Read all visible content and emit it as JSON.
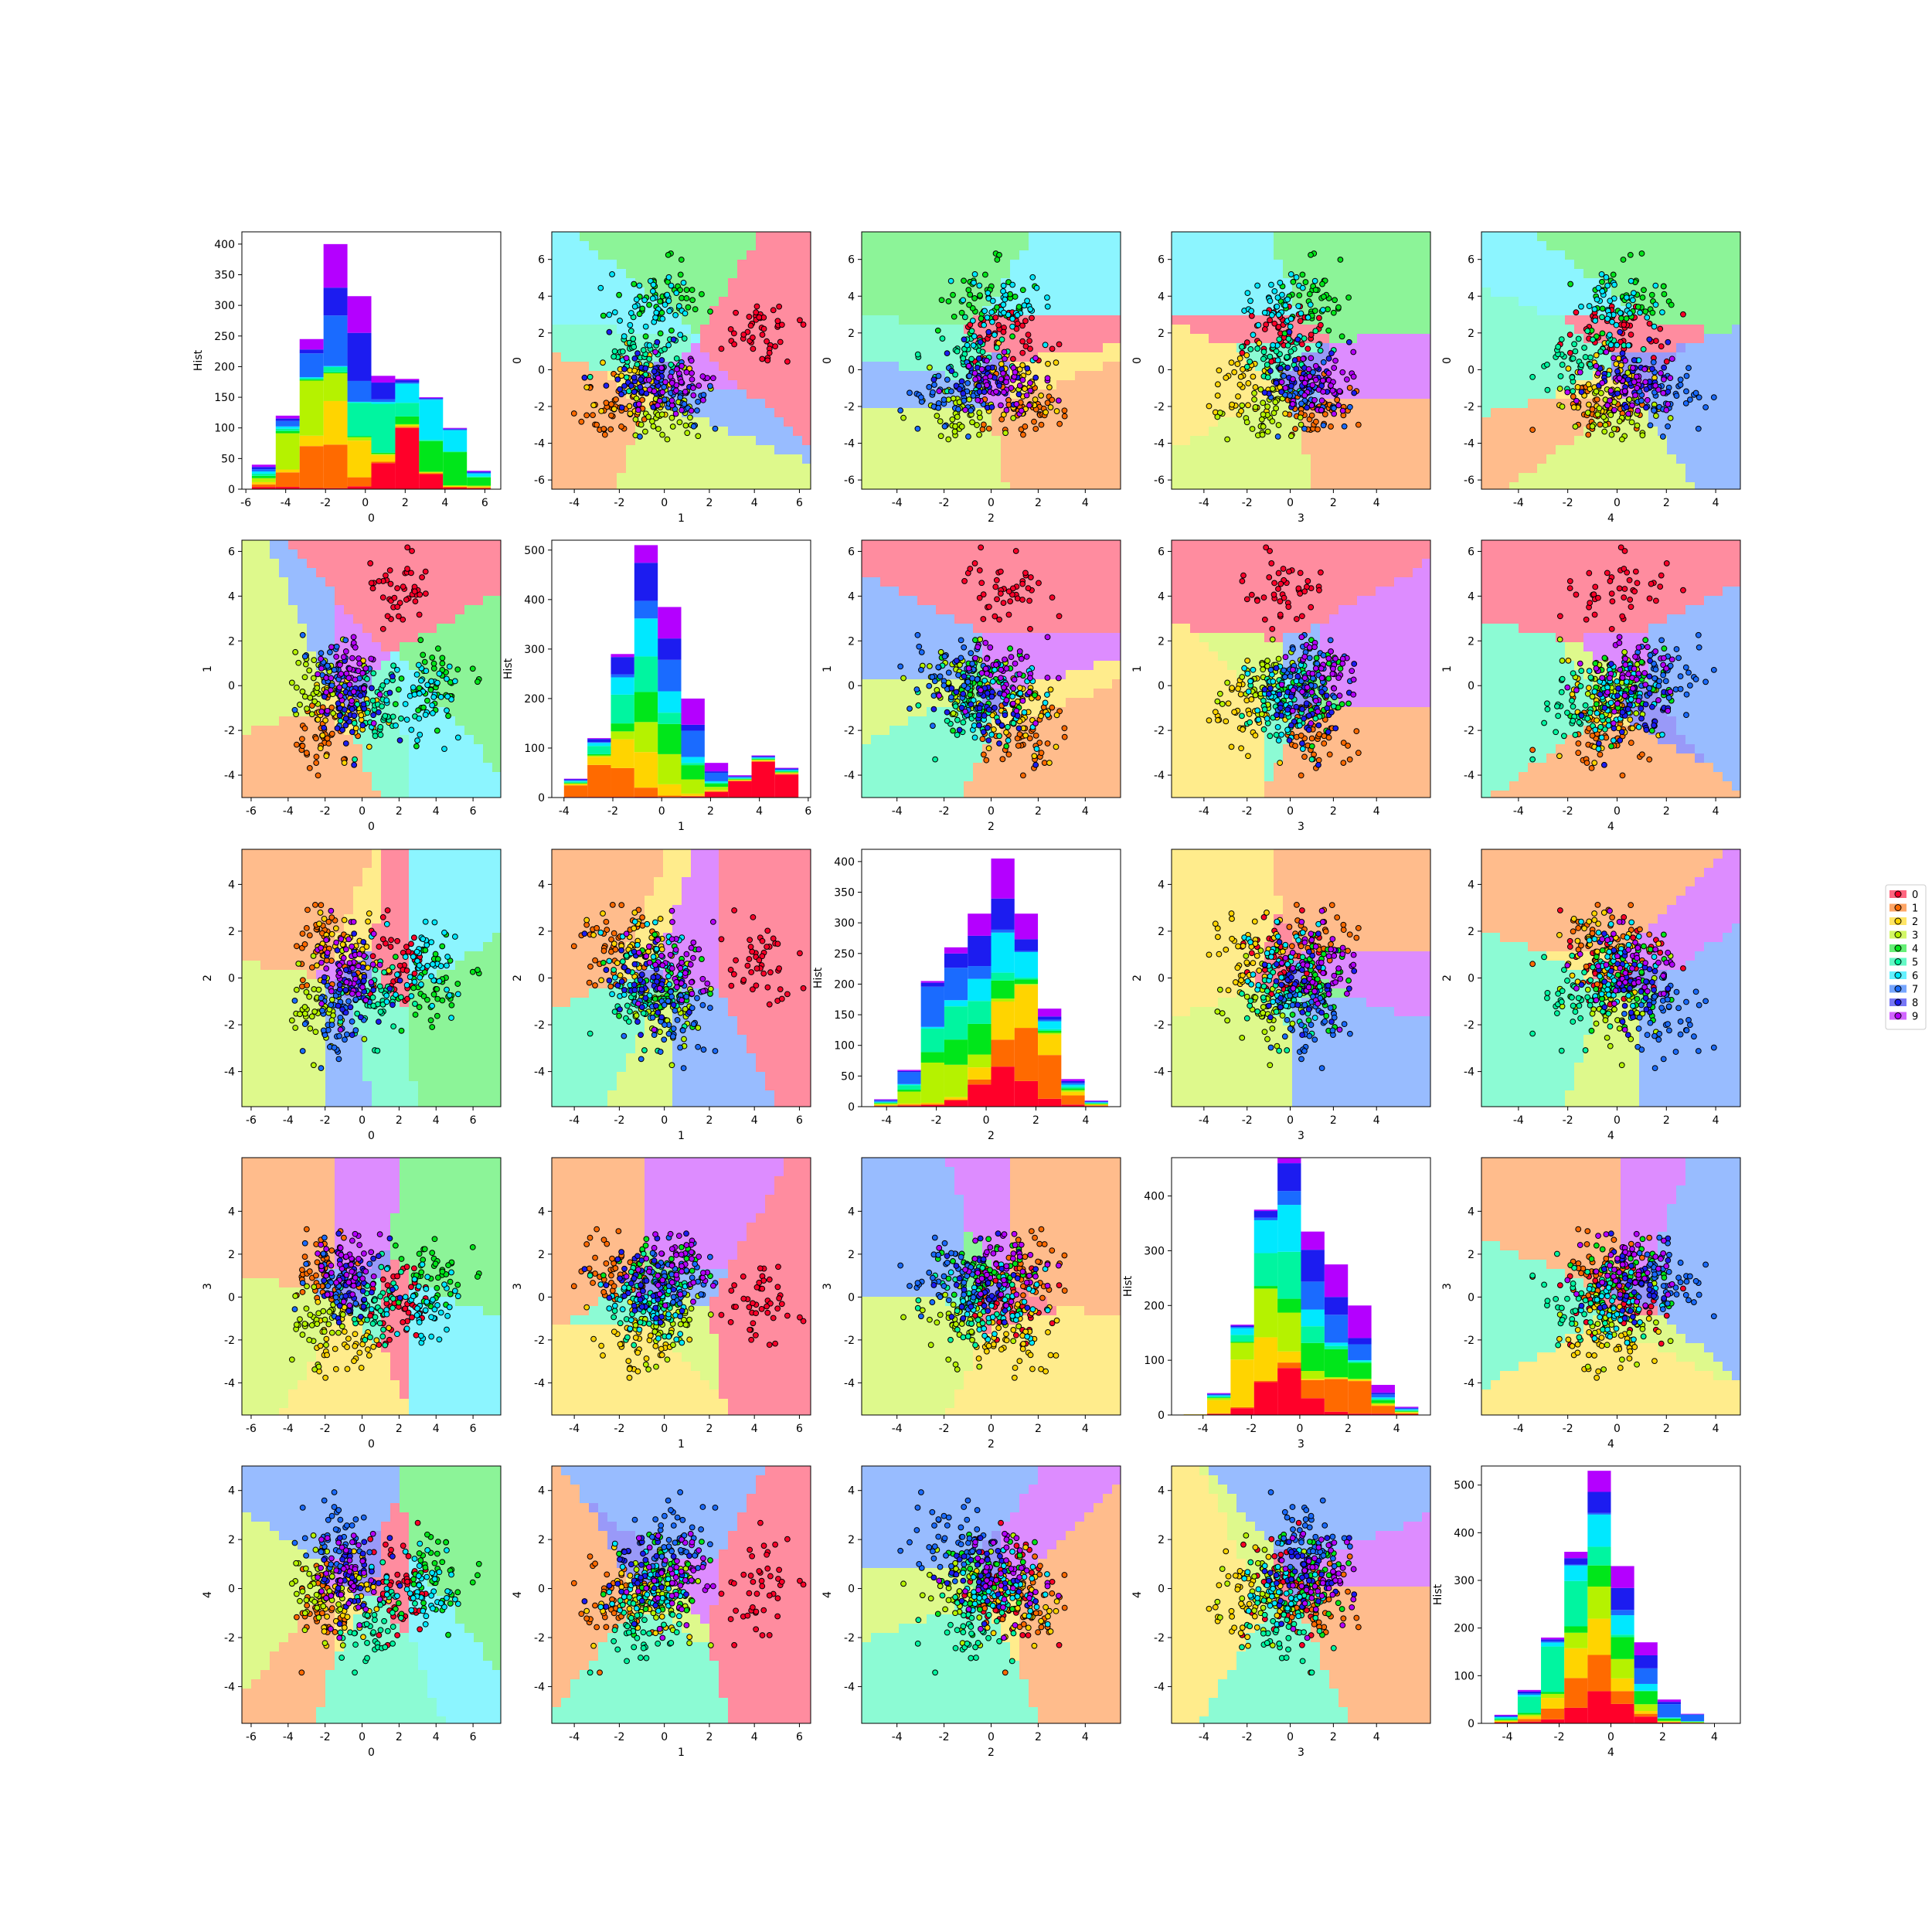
{
  "figure": {
    "hist_ylabel": "Hist"
  },
  "class_colors": [
    "#ff0029",
    "#ff6a00",
    "#ffd400",
    "#b5f200",
    "#00e61a",
    "#00f5a0",
    "#00e8ff",
    "#1a6bff",
    "#1c1cf0",
    "#b400ff"
  ],
  "legend": {
    "entries": [
      "0",
      "1",
      "2",
      "3",
      "4",
      "5",
      "6",
      "7",
      "8",
      "9"
    ],
    "placement": "right"
  },
  "feature_ticks": [
    [
      "-6",
      "-4",
      "-2",
      "0",
      "2",
      "4",
      "6"
    ],
    [
      "-4",
      "-2",
      "0",
      "2",
      "4",
      "6"
    ],
    [
      "-4",
      "-2",
      "0",
      "2",
      "4"
    ],
    [
      "-4",
      "-2",
      "0",
      "2",
      "4"
    ],
    [
      "-4",
      "-2",
      "0",
      "2",
      "4"
    ]
  ],
  "chart_data": {
    "type": "scatter-matrix",
    "features": [
      "0",
      "1",
      "2",
      "3",
      "4"
    ],
    "feature_ranges": [
      [
        -6.5,
        7.5
      ],
      [
        -5,
        6.5
      ],
      [
        -5.5,
        5.5
      ],
      [
        -5.5,
        6.5
      ],
      [
        -5.5,
        5
      ]
    ],
    "feature_tick_values": [
      [
        -6,
        -4,
        -2,
        0,
        2,
        4,
        6
      ],
      [
        -4,
        -2,
        0,
        2,
        4,
        6
      ],
      [
        -4,
        -2,
        0,
        2,
        4
      ],
      [
        -4,
        -2,
        0,
        2,
        4
      ],
      [
        -4,
        -2,
        0,
        2,
        4
      ]
    ],
    "class_means": [
      [
        2.0,
        4.2,
        0.5,
        -0.5,
        0.0
      ],
      [
        -2.0,
        -2.2,
        1.5,
        1.5,
        -0.5
      ],
      [
        -1.0,
        -1.0,
        1.0,
        -2.0,
        -0.5
      ],
      [
        -2.5,
        0.0,
        -1.5,
        -1.0,
        0.0
      ],
      [
        4.0,
        0.0,
        -0.5,
        1.0,
        0.5
      ],
      [
        0.5,
        -1.0,
        -1.0,
        -0.5,
        -1.5
      ],
      [
        3.5,
        -0.5,
        0.5,
        -0.5,
        0.0
      ],
      [
        -1.5,
        0.5,
        -1.5,
        1.0,
        2.0
      ],
      [
        -0.5,
        -0.5,
        0.0,
        0.5,
        0.5
      ],
      [
        -1.0,
        0.5,
        0.5,
        1.5,
        0.5
      ]
    ],
    "histograms": [
      {
        "feature": "0",
        "ylim": [
          0,
          420
        ],
        "yticks": [
          0,
          50,
          100,
          150,
          200,
          250,
          300,
          350,
          400
        ],
        "bin_edges": [
          -5.7,
          -4.5,
          -3.3,
          -2.1,
          -0.9,
          0.3,
          1.5,
          2.7,
          3.9,
          5.1,
          6.3
        ],
        "totals": [
          40,
          120,
          245,
          400,
          315,
          185,
          180,
          150,
          100,
          30
        ]
      },
      {
        "feature": "1",
        "ylim": [
          0,
          520
        ],
        "yticks": [
          0,
          100,
          200,
          300,
          400,
          500
        ],
        "bin_edges": [
          -4.0,
          -3.04,
          -2.08,
          -1.12,
          -0.16,
          0.8,
          1.76,
          2.72,
          3.68,
          4.64,
          5.6
        ],
        "totals": [
          38,
          120,
          290,
          510,
          385,
          200,
          70,
          45,
          85,
          60
        ]
      },
      {
        "feature": "2",
        "ylim": [
          0,
          420
        ],
        "yticks": [
          0,
          50,
          100,
          150,
          200,
          250,
          300,
          350,
          400
        ],
        "bin_edges": [
          -4.5,
          -3.56,
          -2.62,
          -1.68,
          -0.74,
          0.2,
          1.14,
          2.08,
          3.02,
          3.96,
          4.9
        ],
        "totals": [
          12,
          60,
          205,
          260,
          315,
          405,
          315,
          160,
          45,
          10
        ]
      },
      {
        "feature": "3",
        "ylim": [
          0,
          470
        ],
        "yticks": [
          0,
          100,
          200,
          300,
          400
        ],
        "bin_edges": [
          -4.8,
          -3.83,
          -2.86,
          -1.89,
          -0.92,
          0.05,
          1.02,
          1.99,
          2.96,
          3.93,
          4.9
        ],
        "totals": [
          3,
          40,
          165,
          375,
          470,
          335,
          275,
          200,
          55,
          15
        ]
      },
      {
        "feature": "4",
        "ylim": [
          0,
          540
        ],
        "yticks": [
          0,
          100,
          200,
          300,
          400,
          500
        ],
        "bin_edges": [
          -4.5,
          -3.6,
          -2.7,
          -1.8,
          -0.9,
          0.0,
          0.9,
          1.8,
          2.7,
          3.6,
          4.5
        ],
        "totals": [
          18,
          70,
          180,
          360,
          530,
          330,
          170,
          50,
          20,
          0
        ]
      }
    ]
  }
}
